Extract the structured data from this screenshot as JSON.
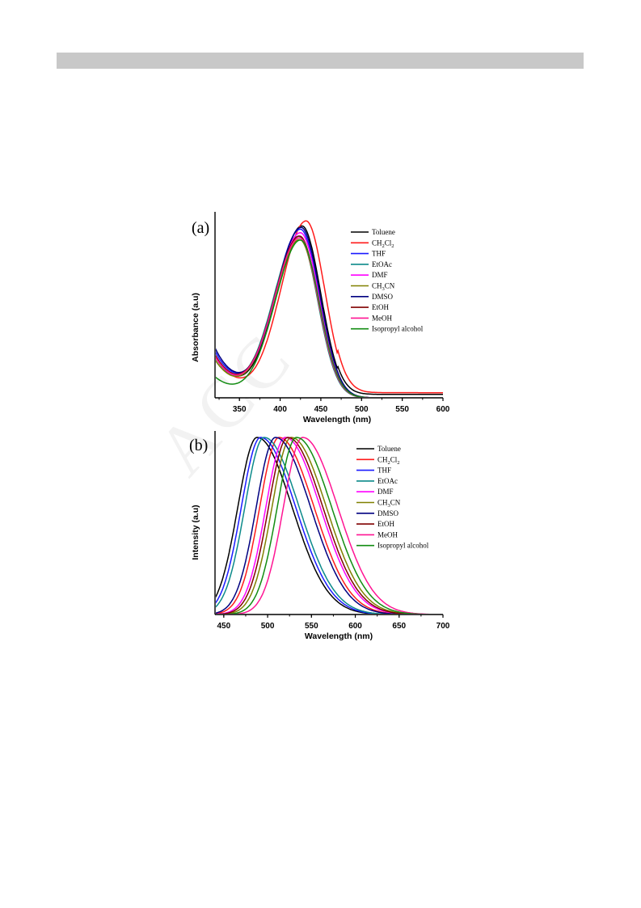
{
  "page": {
    "background": "#ffffff",
    "header_bar_color": "#c8c8c8"
  },
  "watermark": {
    "text": "ACCEPTED MANUSCRIPT",
    "color": "#f2f2f2"
  },
  "series_colors": {
    "Toluene": "#000000",
    "CH2Cl2": "#ff1a1a",
    "THF": "#1a1aff",
    "EtOAc": "#0b8a8a",
    "DMF": "#ff00ff",
    "CH3CN": "#808000",
    "DMSO": "#000080",
    "EtOH": "#800000",
    "MeOH": "#ff1493",
    "Isopropyl alcohol": "#128c12"
  },
  "chart_data": [
    {
      "panel_label": "(a)",
      "type": "line",
      "xlabel": "Wavelength (nm)",
      "ylabel": "Absorbance (a.u)",
      "xlim": [
        320,
        600
      ],
      "xticks": [
        350,
        400,
        450,
        500,
        550,
        600
      ],
      "ylim": [
        0,
        1.05
      ],
      "y_ticks_shown": false,
      "legend_position": "top-right",
      "legend": [
        {
          "main": "Toluene",
          "sub": ""
        },
        {
          "main": "CH",
          "sub": "2",
          "main2": "Cl",
          "sub2": "2"
        },
        {
          "main": " THF",
          "sub": ""
        },
        {
          "main": "EtOAc",
          "sub": ""
        },
        {
          "main": "DMF",
          "sub": ""
        },
        {
          "main": "CH",
          "sub": "3",
          "main2": "CN",
          "sub2": ""
        },
        {
          "main": "DMSO",
          "sub": ""
        },
        {
          "main": "EtOH",
          "sub": ""
        },
        {
          "main": "MeOH",
          "sub": ""
        },
        {
          "main": "Isopropyl alcohol",
          "sub": ""
        }
      ],
      "series": [
        {
          "name": "Toluene",
          "peak": 427,
          "height": 1.0,
          "baseline_uv": 0.24,
          "tail": 0.02
        },
        {
          "name": "CH2Cl2",
          "peak": 432,
          "height": 1.03,
          "baseline_uv": 0.25,
          "tail": 0.03
        },
        {
          "name": "THF",
          "peak": 425,
          "height": 0.98,
          "baseline_uv": 0.27,
          "tail": 0.0
        },
        {
          "name": "EtOAc",
          "peak": 423,
          "height": 0.94,
          "baseline_uv": 0.22,
          "tail": 0.0
        },
        {
          "name": "DMF",
          "peak": 425,
          "height": 0.96,
          "baseline_uv": 0.24,
          "tail": 0.0
        },
        {
          "name": "CH3CN",
          "peak": 424,
          "height": 0.92,
          "baseline_uv": 0.22,
          "tail": 0.0
        },
        {
          "name": "DMSO",
          "peak": 426,
          "height": 0.99,
          "baseline_uv": 0.29,
          "tail": 0.0
        },
        {
          "name": "EtOH",
          "peak": 424,
          "height": 0.94,
          "baseline_uv": 0.25,
          "tail": 0.0
        },
        {
          "name": "MeOH",
          "peak": 424,
          "height": 0.93,
          "baseline_uv": 0.24,
          "tail": 0.0
        },
        {
          "name": "Isopropyl alcohol",
          "peak": 425,
          "height": 0.92,
          "baseline_uv": 0.12,
          "tail": 0.0
        }
      ]
    },
    {
      "panel_label": "(b)",
      "type": "line",
      "xlabel": "Wavelength (nm)",
      "ylabel": "Intensity (a.u)",
      "xlim": [
        440,
        700
      ],
      "xticks": [
        450,
        500,
        550,
        600,
        650,
        700
      ],
      "ylim": [
        0,
        1.0
      ],
      "y_ticks_shown": false,
      "legend_position": "top-right",
      "legend": [
        {
          "main": "Toluene",
          "sub": ""
        },
        {
          "main": "CH",
          "sub": "2",
          "main2": "Cl",
          "sub2": "2"
        },
        {
          "main": " THF",
          "sub": ""
        },
        {
          "main": "EtOAc",
          "sub": ""
        },
        {
          "main": "DMF",
          "sub": ""
        },
        {
          "main": "CH",
          "sub": "3",
          "main2": "CN",
          "sub2": ""
        },
        {
          "main": "DMSO",
          "sub": ""
        },
        {
          "main": "EtOH",
          "sub": ""
        },
        {
          "main": "MeOH",
          "sub": ""
        },
        {
          "main": "Isopropyl alcohol",
          "sub": ""
        }
      ],
      "series": [
        {
          "name": "Toluene",
          "peak": 488,
          "height": 1.0
        },
        {
          "name": "CH2Cl2",
          "peak": 513,
          "height": 1.0
        },
        {
          "name": "THF",
          "peak": 492,
          "height": 1.0
        },
        {
          "name": "EtOAc",
          "peak": 496,
          "height": 1.0
        },
        {
          "name": "DMF",
          "peak": 520,
          "height": 1.0
        },
        {
          "name": "CH3CN",
          "peak": 527,
          "height": 1.0
        },
        {
          "name": "DMSO",
          "peak": 509,
          "height": 1.0
        },
        {
          "name": "EtOH",
          "peak": 523,
          "height": 1.0
        },
        {
          "name": "MeOH",
          "peak": 540,
          "height": 1.0
        },
        {
          "name": "Isopropyl alcohol",
          "peak": 533,
          "height": 1.0
        }
      ]
    }
  ]
}
